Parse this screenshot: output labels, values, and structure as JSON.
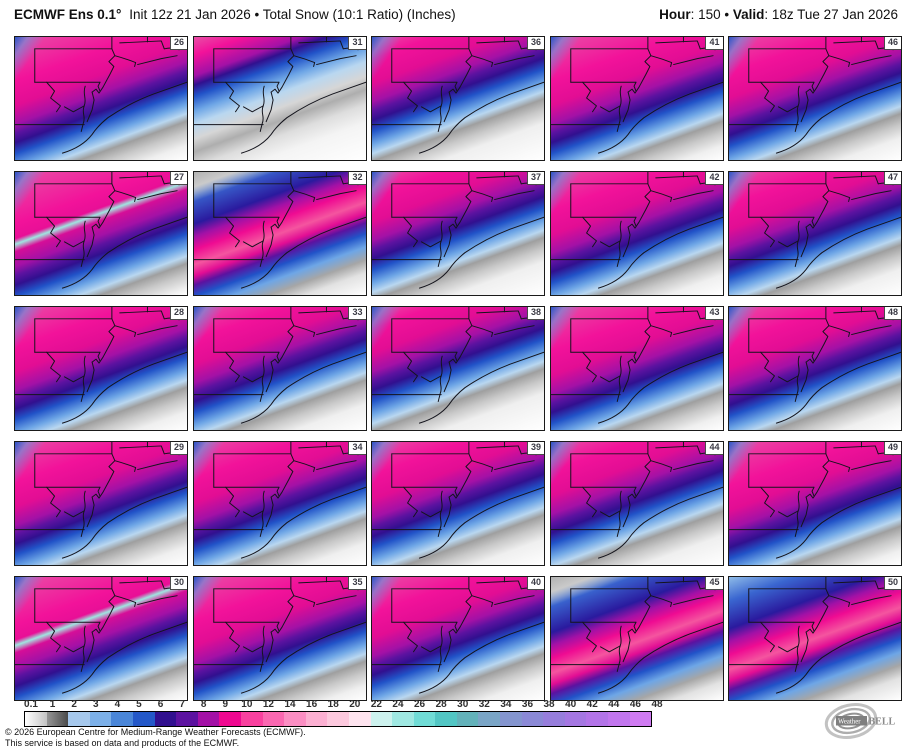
{
  "header": {
    "model": "ECMWF Ens 0.1°",
    "init_text": "Init 12z 21 Jan 2026 • Total Snow (10:1 Ratio) (Inches)",
    "hour_label": "Hour",
    "hour_rest": ": 150 • ",
    "valid_label": "Valid",
    "valid_rest": ": 18z Tue 27 Jan 2026"
  },
  "grid": {
    "members": [
      {
        "num": "26",
        "profile": "A",
        "shift": 4
      },
      {
        "num": "31",
        "profile": "C",
        "shift": 0
      },
      {
        "num": "36",
        "profile": "A",
        "shift": -8
      },
      {
        "num": "41",
        "profile": "A",
        "shift": 4
      },
      {
        "num": "46",
        "profile": "A",
        "shift": 0
      },
      {
        "num": "27",
        "profile": "A",
        "shift": 8,
        "cyan": true
      },
      {
        "num": "32",
        "profile": "B",
        "shift": 0,
        "grayTop": true
      },
      {
        "num": "37",
        "profile": "A",
        "shift": -6
      },
      {
        "num": "42",
        "profile": "A",
        "shift": 1
      },
      {
        "num": "47",
        "profile": "A",
        "shift": -2
      },
      {
        "num": "28",
        "profile": "A",
        "shift": 2
      },
      {
        "num": "33",
        "profile": "A",
        "shift": -2
      },
      {
        "num": "38",
        "profile": "A",
        "shift": -8
      },
      {
        "num": "43",
        "profile": "A",
        "shift": 4
      },
      {
        "num": "48",
        "profile": "A",
        "shift": 0
      },
      {
        "num": "29",
        "profile": "A",
        "shift": 2
      },
      {
        "num": "34",
        "profile": "A",
        "shift": 0
      },
      {
        "num": "39",
        "profile": "A",
        "shift": -2
      },
      {
        "num": "44",
        "profile": "A",
        "shift": -4
      },
      {
        "num": "49",
        "profile": "A",
        "shift": 4
      },
      {
        "num": "30",
        "profile": "A",
        "shift": 6,
        "cyan": true
      },
      {
        "num": "35",
        "profile": "A",
        "shift": 4
      },
      {
        "num": "40",
        "profile": "A",
        "shift": 0
      },
      {
        "num": "45",
        "profile": "B",
        "shift": 2,
        "grayTop": true
      },
      {
        "num": "50",
        "profile": "B",
        "shift": 0
      }
    ]
  },
  "colorbar": {
    "labels": [
      "0.1",
      "1",
      "2",
      "3",
      "4",
      "5",
      "6",
      "7",
      "8",
      "9",
      "10",
      "12",
      "14",
      "16",
      "18",
      "20",
      "22",
      "24",
      "26",
      "28",
      "30",
      "32",
      "34",
      "36",
      "38",
      "40",
      "42",
      "44",
      "46",
      "48"
    ],
    "colors": [
      "#e3e3e3",
      "#8a8a8a",
      "#a6c8ec",
      "#7cb0e8",
      "#4a86d8",
      "#2458c8",
      "#31108f",
      "#5c12a0",
      "#a311a6",
      "#ef0890",
      "#f9419f",
      "#fa68b1",
      "#fb8ec3",
      "#fcb0d2",
      "#fdc9de",
      "#fee4ef",
      "#cdf2ee",
      "#9fe8e2",
      "#70dcd6",
      "#52c6c4",
      "#63b2ba",
      "#7aa5c6",
      "#8495cf",
      "#8b89d6",
      "#977edc",
      "#a577e2",
      "#b374e8",
      "#c276ee",
      "#d07bf2"
    ]
  },
  "footer": {
    "line1": "© 2026 European Centre for Medium-Range Weather Forecasts (ECMWF).",
    "line2": "This service is based on data and products of the ECMWF.",
    "logo_weather": "Weather",
    "logo_bell": "BELL"
  }
}
